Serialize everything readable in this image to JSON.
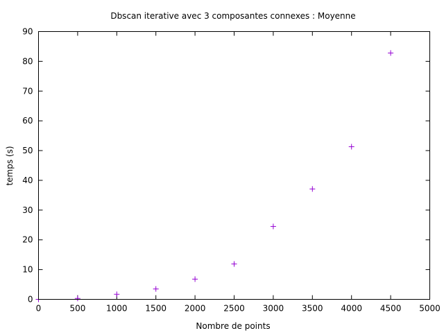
{
  "chart_data": {
    "type": "scatter",
    "title": "Dbscan iterative avec 3 composantes connexes : Moyenne",
    "xlabel": "Nombre de points",
    "ylabel": "temps (s)",
    "xlim": [
      0,
      5000
    ],
    "ylim": [
      0,
      90
    ],
    "x_ticks": [
      0,
      500,
      1000,
      1500,
      2000,
      2500,
      3000,
      3500,
      4000,
      4500,
      5000
    ],
    "y_ticks": [
      0,
      10,
      20,
      30,
      40,
      50,
      60,
      70,
      80,
      90
    ],
    "grid": false,
    "legend": "none",
    "marker": "plus",
    "series": [
      {
        "color": "#9400d3",
        "points": [
          {
            "x": 0,
            "y": 0.0
          },
          {
            "x": 500,
            "y": 0.3
          },
          {
            "x": 1000,
            "y": 1.7
          },
          {
            "x": 1500,
            "y": 3.5
          },
          {
            "x": 2000,
            "y": 6.8
          },
          {
            "x": 2500,
            "y": 11.9
          },
          {
            "x": 3000,
            "y": 24.5
          },
          {
            "x": 3500,
            "y": 37.1
          },
          {
            "x": 4000,
            "y": 51.3
          },
          {
            "x": 4500,
            "y": 82.8
          }
        ]
      }
    ]
  }
}
